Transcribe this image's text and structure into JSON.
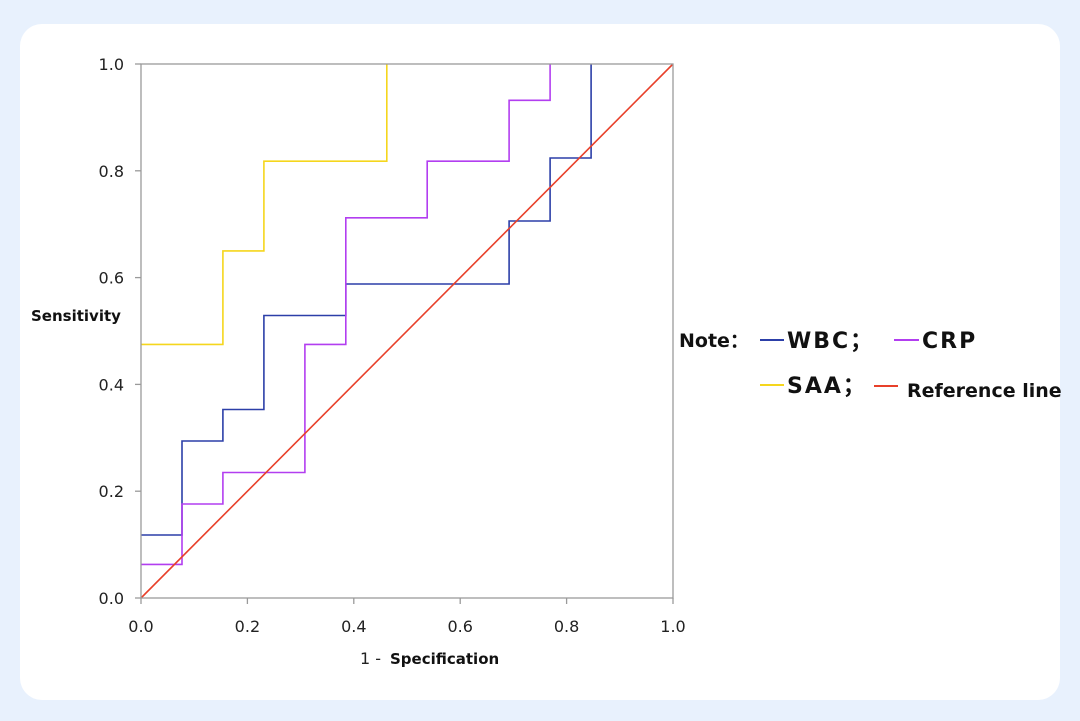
{
  "chart_data": {
    "type": "line",
    "xlabel_prefix": "1 -",
    "xlabel": "Specification",
    "ylabel": "Sensitivity",
    "xlim": [
      0,
      1
    ],
    "ylim": [
      0,
      1
    ],
    "xticks": [
      "0.0",
      "0.2",
      "0.4",
      "0.6",
      "0.8",
      "1.0"
    ],
    "yticks": [
      "0.0",
      "0.2",
      "0.4",
      "0.6",
      "0.8",
      "1.0"
    ],
    "grid": false,
    "legend": {
      "position": "right",
      "note_label": "Note：",
      "items": [
        {
          "label": "WBC；",
          "color": "#2c3fa8"
        },
        {
          "label": "CRP",
          "color": "#b23ef0"
        },
        {
          "label": "SAA；",
          "color": "#f5d61d"
        },
        {
          "label": "Reference line",
          "color": "#e8402a"
        }
      ]
    },
    "series": [
      {
        "name": "WBC",
        "color": "#2c3fa8",
        "step": true,
        "x": [
          0,
          0.077,
          0.077,
          0.154,
          0.154,
          0.231,
          0.231,
          0.385,
          0.385,
          0.692,
          0.692,
          0.769,
          0.769,
          0.846,
          0.846
        ],
        "y": [
          0.118,
          0.118,
          0.294,
          0.294,
          0.353,
          0.353,
          0.529,
          0.529,
          0.588,
          0.588,
          0.706,
          0.706,
          0.824,
          0.824,
          1.0
        ]
      },
      {
        "name": "CRP",
        "color": "#b23ef0",
        "step": true,
        "x": [
          0,
          0.077,
          0.077,
          0.154,
          0.154,
          0.308,
          0.308,
          0.385,
          0.385,
          0.538,
          0.538,
          0.692,
          0.692,
          0.769,
          0.769
        ],
        "y": [
          0.063,
          0.063,
          0.176,
          0.176,
          0.235,
          0.235,
          0.475,
          0.475,
          0.712,
          0.712,
          0.818,
          0.818,
          0.932,
          0.932,
          1.0
        ]
      },
      {
        "name": "SAA",
        "color": "#f5d61d",
        "step": true,
        "x": [
          0,
          0.154,
          0.154,
          0.231,
          0.231,
          0.462,
          0.462
        ],
        "y": [
          0.475,
          0.475,
          0.65,
          0.65,
          0.818,
          0.818,
          1.0
        ]
      },
      {
        "name": "Reference line",
        "color": "#e8402a",
        "step": false,
        "x": [
          0,
          1
        ],
        "y": [
          0,
          1
        ]
      }
    ]
  }
}
